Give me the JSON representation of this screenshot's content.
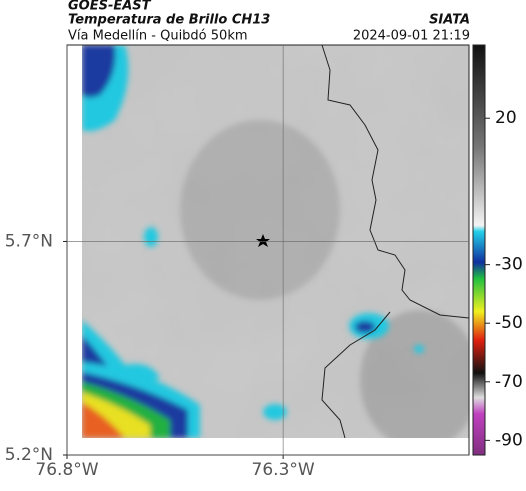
{
  "header": {
    "source": "GOES-EAST",
    "title": "Temperatura de Brillo CH13",
    "agency": "SIATA",
    "route": "Vía Medellín - Quibdó 50km",
    "datetime": "2024-09-01 21:19"
  },
  "map": {
    "xlim": [
      -76.8,
      -75.87
    ],
    "ylim": [
      5.2,
      6.16
    ],
    "xticks": [
      {
        "value": -76.8,
        "label": "76.8°W"
      },
      {
        "value": -76.3,
        "label": "76.3°W"
      }
    ],
    "yticks": [
      {
        "value": 5.2,
        "label": "5.2°N"
      },
      {
        "value": 5.7,
        "label": "5.7°N"
      }
    ]
  },
  "colorbar": {
    "lim": [
      -95,
      45
    ],
    "ticks": [
      20,
      -30,
      -50,
      -70,
      -90
    ]
  }
}
